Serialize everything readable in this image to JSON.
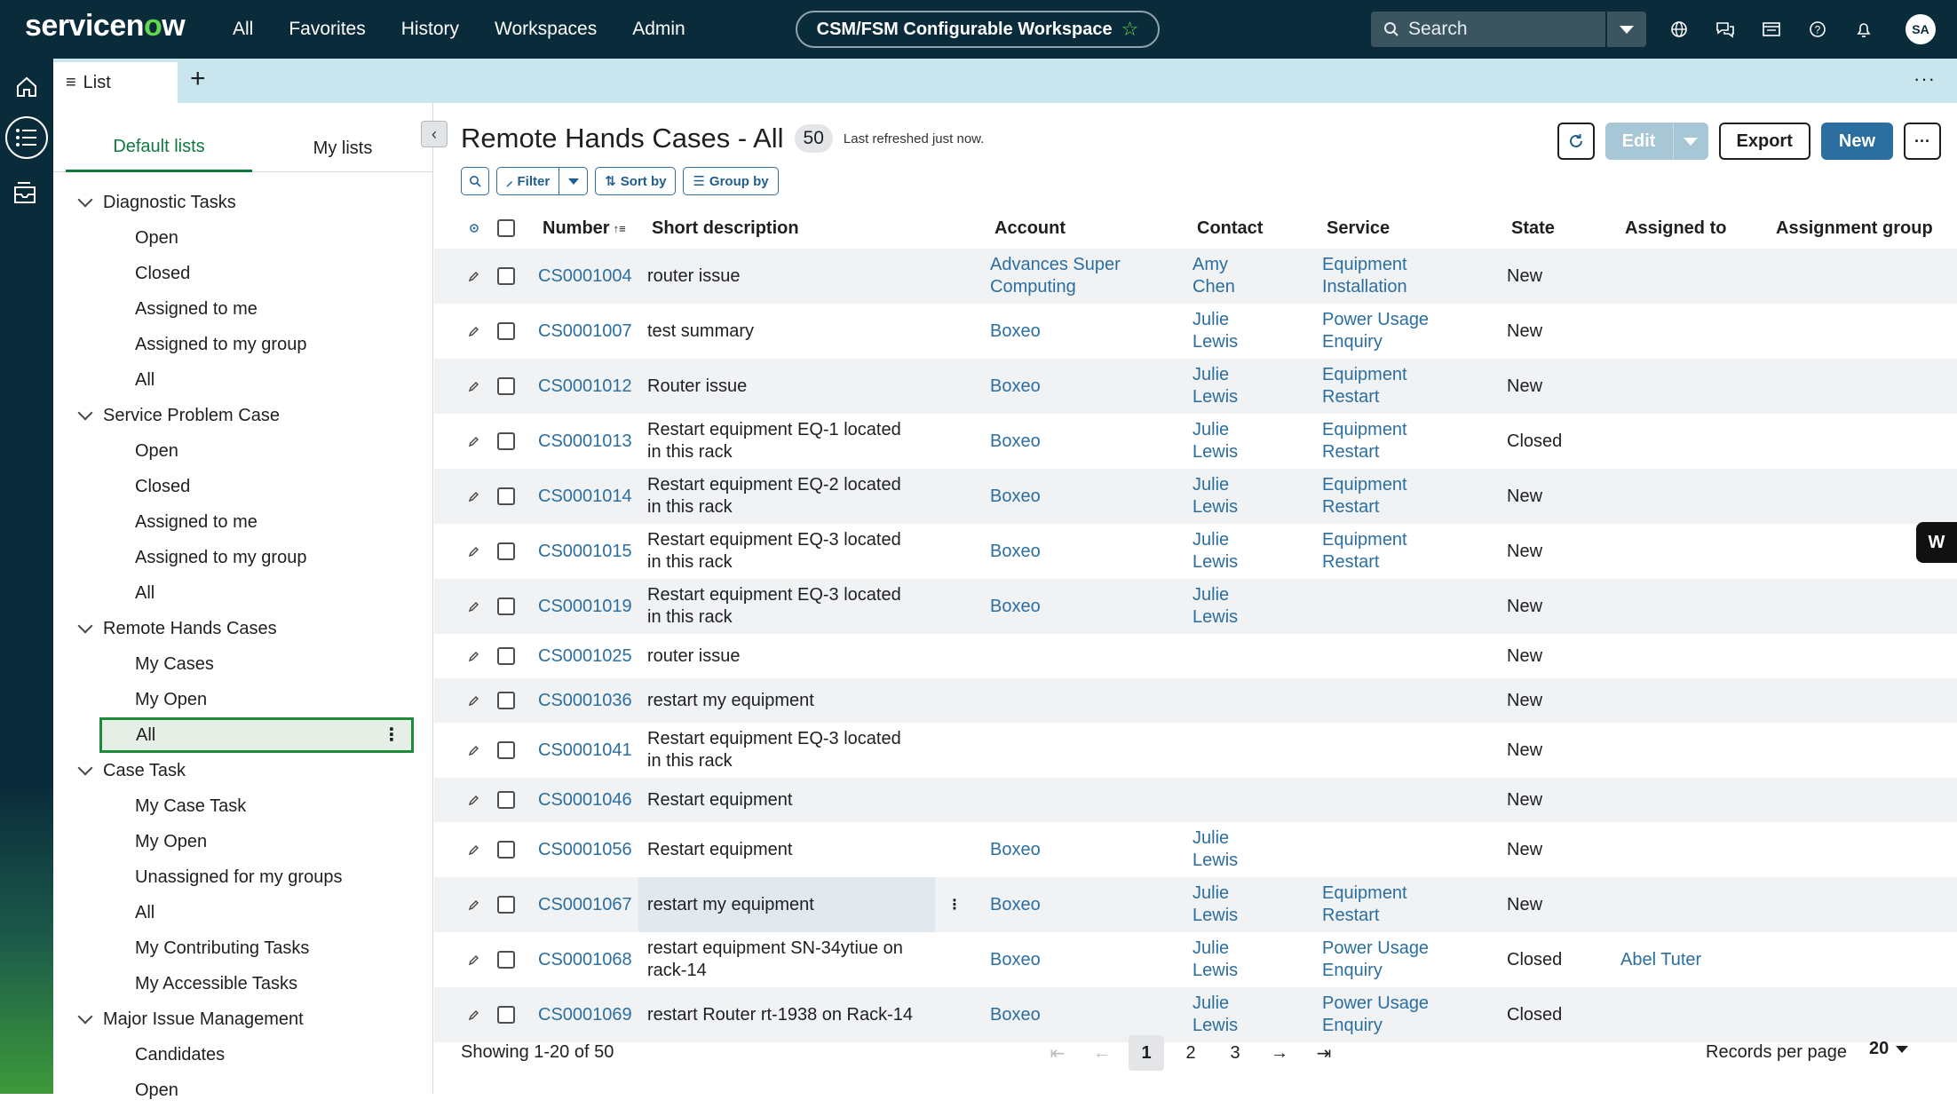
{
  "brand": {
    "logo_pre": "servicen",
    "logo_o": "o",
    "logo_post": "w"
  },
  "nav": {
    "items": [
      "All",
      "Favorites",
      "History",
      "Workspaces",
      "Admin"
    ]
  },
  "workspace": {
    "label": "CSM/FSM Configurable Workspace"
  },
  "search": {
    "placeholder": "Search"
  },
  "user": {
    "initials": "SA"
  },
  "tabs": {
    "list_label": "List"
  },
  "left_panel": {
    "tabs": [
      "Default lists",
      "My lists"
    ],
    "groups": [
      {
        "label": "Diagnostic Tasks",
        "items": [
          "Open",
          "Closed",
          "Assigned to me",
          "Assigned to my group",
          "All"
        ]
      },
      {
        "label": "Service Problem Case",
        "items": [
          "Open",
          "Closed",
          "Assigned to me",
          "Assigned to my group",
          "All"
        ]
      },
      {
        "label": "Remote Hands Cases",
        "items": [
          "My Cases",
          "My Open",
          "All"
        ]
      },
      {
        "label": "Case Task",
        "items": [
          "My Case Task",
          "My Open",
          "Unassigned for my groups",
          "All",
          "My Contributing Tasks",
          "My Accessible Tasks"
        ]
      },
      {
        "label": "Major Issue Management",
        "items": [
          "Candidates",
          "Open"
        ]
      }
    ],
    "selected": {
      "group": 2,
      "item": 2
    }
  },
  "main": {
    "title": "Remote Hands Cases - All",
    "count": "50",
    "refreshed": "Last refreshed just now.",
    "actions": {
      "edit": "Edit",
      "export": "Export",
      "new": "New"
    },
    "toolbar": {
      "filter": "Filter",
      "sort": "Sort by",
      "group": "Group by"
    },
    "columns": [
      "Number",
      "Short description",
      "Account",
      "Contact",
      "Service",
      "State",
      "Assigned to",
      "Assignment group"
    ],
    "rows": [
      {
        "number": "CS0001004",
        "desc": "router issue",
        "account": "Advances Super Computing",
        "contact": "Amy Chen",
        "service": "Equipment Installation",
        "state": "New",
        "assigned": ""
      },
      {
        "number": "CS0001007",
        "desc": "test summary",
        "account": "Boxeo",
        "contact": "Julie Lewis",
        "service": "Power Usage Enquiry",
        "state": "New",
        "assigned": ""
      },
      {
        "number": "CS0001012",
        "desc": "Router issue",
        "account": "Boxeo",
        "contact": "Julie Lewis",
        "service": "Equipment Restart",
        "state": "New",
        "assigned": ""
      },
      {
        "number": "CS0001013",
        "desc": "Restart equipment EQ-1 located in this rack",
        "account": "Boxeo",
        "contact": "Julie Lewis",
        "service": "Equipment Restart",
        "state": "Closed",
        "assigned": ""
      },
      {
        "number": "CS0001014",
        "desc": "Restart equipment EQ-2 located in this rack",
        "account": "Boxeo",
        "contact": "Julie Lewis",
        "service": "Equipment Restart",
        "state": "New",
        "assigned": ""
      },
      {
        "number": "CS0001015",
        "desc": "Restart equipment EQ-3 located in this rack",
        "account": "Boxeo",
        "contact": "Julie Lewis",
        "service": "Equipment Restart",
        "state": "New",
        "assigned": ""
      },
      {
        "number": "CS0001019",
        "desc": "Restart equipment EQ-3 located in this rack",
        "account": "Boxeo",
        "contact": "Julie Lewis",
        "service": "",
        "state": "New",
        "assigned": ""
      },
      {
        "number": "CS0001025",
        "desc": "router issue",
        "account": "",
        "contact": "",
        "service": "",
        "state": "New",
        "assigned": ""
      },
      {
        "number": "CS0001036",
        "desc": "restart my equipment",
        "account": "",
        "contact": "",
        "service": "",
        "state": "New",
        "assigned": ""
      },
      {
        "number": "CS0001041",
        "desc": "Restart equipment EQ-3 located in this rack",
        "account": "",
        "contact": "",
        "service": "",
        "state": "New",
        "assigned": ""
      },
      {
        "number": "CS0001046",
        "desc": "Restart equipment",
        "account": "",
        "contact": "",
        "service": "",
        "state": "New",
        "assigned": ""
      },
      {
        "number": "CS0001056",
        "desc": "Restart equipment",
        "account": "Boxeo",
        "contact": "Julie Lewis",
        "service": "",
        "state": "New",
        "assigned": ""
      },
      {
        "number": "CS0001067",
        "desc": "restart my equipment",
        "account": "Boxeo",
        "contact": "Julie Lewis",
        "service": "Equipment Restart",
        "state": "New",
        "assigned": ""
      },
      {
        "number": "CS0001068",
        "desc": "restart equipment SN-34ytiue on rack-14",
        "account": "Boxeo",
        "contact": "Julie Lewis",
        "service": "Power Usage Enquiry",
        "state": "Closed",
        "assigned": "Abel Tuter"
      },
      {
        "number": "CS0001069",
        "desc": "restart Router rt-1938 on Rack-14",
        "account": "Boxeo",
        "contact": "Julie Lewis",
        "service": "Power Usage Enquiry",
        "state": "Closed",
        "assigned": ""
      }
    ],
    "pager": {
      "showing": "Showing 1-20 of 50",
      "pages": [
        "1",
        "2",
        "3"
      ],
      "current": "1",
      "rpp_label": "Records per page",
      "rpp_value": "20"
    }
  },
  "side_widget": {
    "label": "W"
  },
  "colors": {
    "nav_bg": "#0a2b3a",
    "accent_green": "#62d84e",
    "link": "#2b6ea0",
    "tab_strip": "#c9e6ee"
  }
}
